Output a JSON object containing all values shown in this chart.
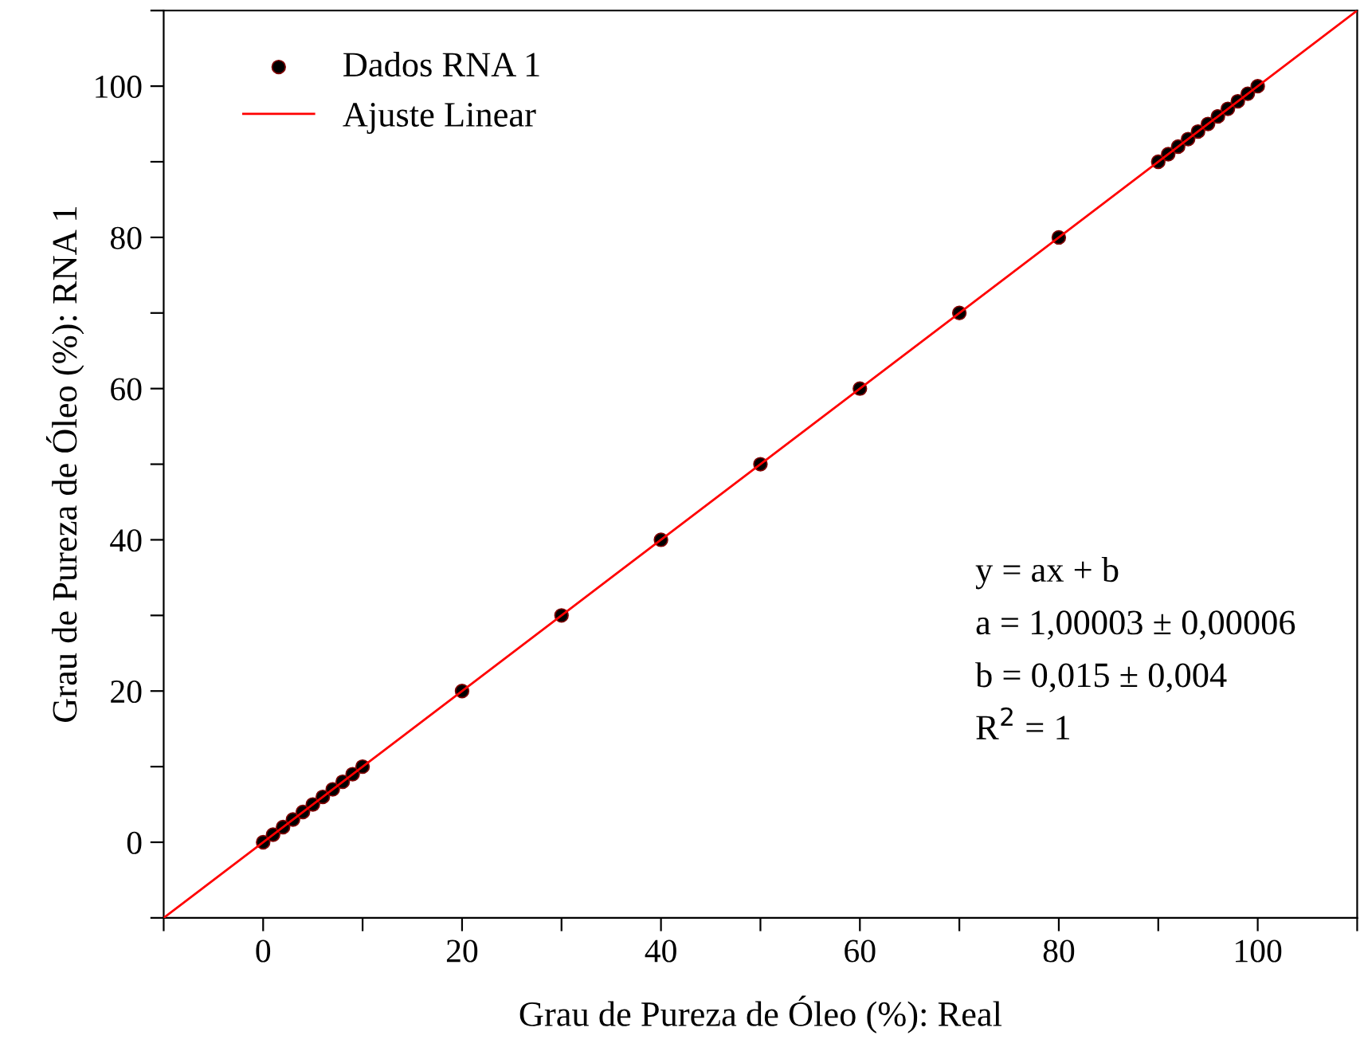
{
  "chart_data": {
    "type": "scatter",
    "xlabel": "Grau de Pureza de Óleo (%): Real",
    "ylabel": "Grau de Pureza de Óleo (%): RNA 1",
    "xlim": [
      -10,
      110
    ],
    "ylim": [
      -10,
      110
    ],
    "xticks": [
      {
        "value": -10,
        "label": null
      },
      0,
      {
        "value": 10,
        "label": null
      },
      20,
      {
        "value": 30,
        "label": null
      },
      40,
      {
        "value": 50,
        "label": null
      },
      60,
      {
        "value": 70,
        "label": null
      },
      80,
      {
        "value": 90,
        "label": null
      },
      100,
      {
        "value": 110,
        "label": null
      }
    ],
    "yticks": [
      {
        "value": -10,
        "label": null
      },
      0,
      {
        "value": 10,
        "label": null
      },
      20,
      {
        "value": 30,
        "label": null
      },
      40,
      {
        "value": 50,
        "label": null
      },
      60,
      {
        "value": 70,
        "label": null
      },
      80,
      {
        "value": 90,
        "label": null
      },
      100,
      {
        "value": 110,
        "label": null
      }
    ],
    "series": [
      {
        "name": "Dados RNA 1",
        "color": "#000000",
        "marker": "circle",
        "x": [
          0,
          1,
          2,
          3,
          4,
          5,
          6,
          7,
          8,
          9,
          10,
          20,
          30,
          40,
          50,
          60,
          70,
          80,
          90,
          91,
          92,
          93,
          94,
          95,
          96,
          97,
          98,
          99,
          100
        ],
        "values": [
          0,
          1,
          2,
          3,
          4,
          5,
          6,
          7,
          8,
          9,
          10,
          20,
          30,
          40,
          50,
          60,
          70,
          80,
          90,
          91,
          92,
          93,
          94,
          95,
          96,
          97,
          98,
          99,
          100
        ]
      },
      {
        "name": "Ajuste Linear",
        "type": "line",
        "color": "#ff0000",
        "line_style": "solid",
        "marker": "none",
        "x": [
          -10,
          110
        ],
        "values": [
          -10,
          110
        ]
      }
    ],
    "legend": "top left",
    "grid": false,
    "annotations": [
      "y = ax + b",
      "a = 1,00003 ± 0,00006",
      "b = 0,015 ± 0,004",
      "R$^{2}$ = 1"
    ]
  }
}
